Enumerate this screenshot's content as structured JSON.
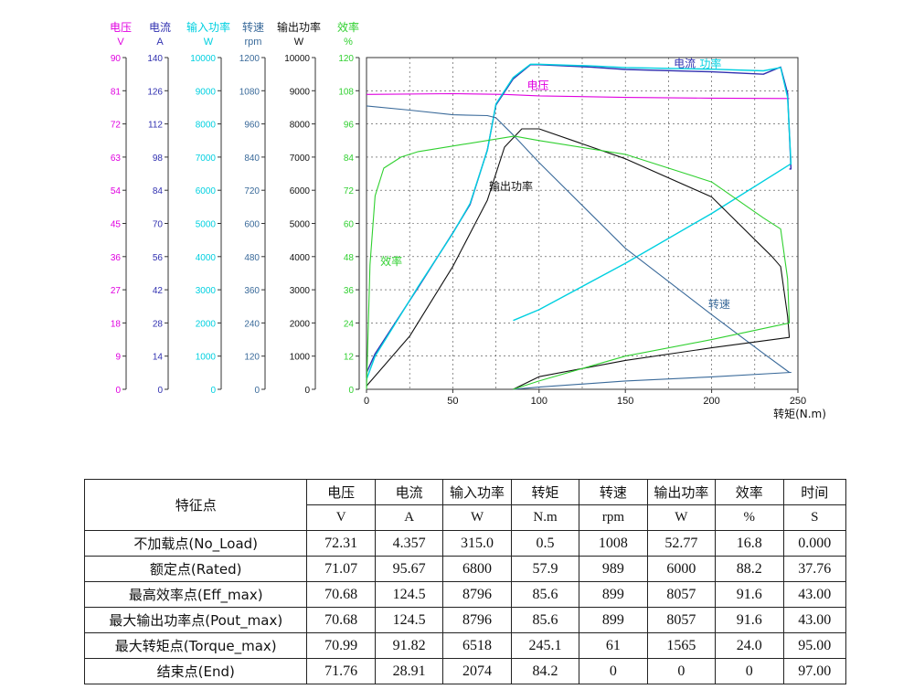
{
  "chart_data": {
    "type": "line",
    "xlabel": "转矩(N.m)",
    "xlim": [
      0,
      250
    ],
    "x_ticks": [
      "0",
      "50",
      "100",
      "150",
      "200",
      "250"
    ],
    "grid": true,
    "axes": [
      {
        "name": "电压",
        "unit": "V",
        "color": "#e000e0",
        "min": 0,
        "max": 90,
        "ticks": [
          "0",
          "9",
          "18",
          "27",
          "36",
          "45",
          "54",
          "63",
          "72",
          "81",
          "90"
        ]
      },
      {
        "name": "电流",
        "unit": "A",
        "color": "#3030b0",
        "min": 0,
        "max": 140,
        "ticks": [
          "0",
          "14",
          "28",
          "42",
          "56",
          "70",
          "84",
          "98",
          "112",
          "126",
          "140"
        ]
      },
      {
        "name": "输入功率",
        "unit": "W",
        "color": "#00d0e0",
        "min": 0,
        "max": 10000,
        "ticks": [
          "0",
          "1000",
          "2000",
          "3000",
          "4000",
          "5000",
          "6000",
          "7000",
          "8000",
          "9000",
          "10000"
        ]
      },
      {
        "name": "转速",
        "unit": "rpm",
        "color": "#3a6a9a",
        "min": 0,
        "max": 1200,
        "ticks": [
          "0",
          "120",
          "240",
          "360",
          "480",
          "600",
          "720",
          "840",
          "960",
          "1080",
          "1200"
        ]
      },
      {
        "name": "输出功率",
        "unit": "W",
        "color": "#111111",
        "min": 0,
        "max": 10000,
        "ticks": [
          "0",
          "1000",
          "2000",
          "3000",
          "4000",
          "5000",
          "6000",
          "7000",
          "8000",
          "9000",
          "10000"
        ]
      },
      {
        "name": "效率",
        "unit": "%",
        "color": "#30d030",
        "min": 0,
        "max": 120,
        "ticks": [
          "0",
          "12",
          "24",
          "36",
          "48",
          "60",
          "72",
          "84",
          "96",
          "108",
          "120"
        ]
      }
    ],
    "series": [
      {
        "name": "电压",
        "axis": 0,
        "color": "#e000e0",
        "x": [
          0,
          50,
          80,
          100,
          150,
          200,
          245
        ],
        "y": [
          80.0,
          80.2,
          80.0,
          79.6,
          79.2,
          79.0,
          78.9
        ]
      },
      {
        "name": "电流",
        "axis": 1,
        "color": "#3030b0",
        "x": [
          0,
          5,
          30,
          50,
          60,
          70,
          75,
          85,
          95,
          100,
          130,
          150,
          200,
          230,
          240,
          244,
          246,
          245
        ],
        "y": [
          7,
          15,
          43,
          66,
          78,
          101,
          120,
          131,
          137,
          137,
          136,
          135,
          134,
          133,
          136,
          125,
          93,
          93
        ]
      },
      {
        "name": "输入功率",
        "axis": 2,
        "color": "#00d0e0",
        "x": [
          0,
          5,
          30,
          50,
          60,
          70,
          75,
          85,
          95,
          100,
          130,
          150,
          200,
          230,
          240,
          244,
          246,
          200,
          150,
          100,
          85
        ],
        "y": [
          300,
          1000,
          3100,
          4700,
          5600,
          7200,
          8600,
          9400,
          9800,
          9800,
          9750,
          9700,
          9650,
          9600,
          9700,
          8800,
          6800,
          5300,
          3800,
          2400,
          2074
        ]
      },
      {
        "name": "转速",
        "axis": 3,
        "color": "#3a6a9a",
        "x": [
          0,
          25,
          50,
          70,
          75,
          85,
          100,
          150,
          200,
          230,
          245,
          246,
          200,
          150,
          100,
          85
        ],
        "y": [
          1025,
          1010,
          993,
          990,
          982,
          920,
          820,
          510,
          270,
          130,
          61,
          61,
          45,
          30,
          8,
          0
        ]
      },
      {
        "name": "输出功率",
        "axis": 4,
        "color": "#111111",
        "x": [
          0,
          25,
          50,
          70,
          80,
          90,
          100,
          150,
          200,
          235,
          240,
          244,
          245,
          200,
          150,
          100,
          85
        ],
        "y": [
          100,
          1600,
          3700,
          5700,
          7300,
          7850,
          7850,
          6950,
          5800,
          4000,
          3700,
          2200,
          1565,
          1250,
          870,
          380,
          0
        ]
      },
      {
        "name": "效率",
        "axis": 5,
        "color": "#30d030",
        "x": [
          0,
          2,
          5,
          10,
          20,
          30,
          50,
          80,
          85.6,
          100,
          150,
          200,
          230,
          240,
          244,
          245,
          200,
          150,
          100,
          85
        ],
        "y": [
          0,
          45,
          70,
          80,
          84,
          86,
          88,
          91,
          91.6,
          90,
          85,
          75,
          62,
          58,
          40,
          24,
          18,
          12,
          3,
          0
        ]
      }
    ],
    "annotations": [
      {
        "text": "电流",
        "x": 178,
        "axis": 1,
        "y": 136,
        "color": "#3030b0"
      },
      {
        "text": "功率",
        "x": 193,
        "axis": 2,
        "y": 9700,
        "color": "#00d0e0"
      },
      {
        "text": "电压",
        "x": 93,
        "axis": 0,
        "y": 81.5,
        "color": "#e000e0"
      },
      {
        "text": "输出功率",
        "x": 71,
        "axis": 4,
        "y": 6000,
        "color": "#111111"
      },
      {
        "text": "效率",
        "x": 8,
        "axis": 5,
        "y": 45,
        "color": "#30d030"
      },
      {
        "text": "转速",
        "x": 198,
        "axis": 3,
        "y": 295,
        "color": "#3a6a9a"
      }
    ]
  },
  "table": {
    "corner": "特征点",
    "headers": [
      "电压",
      "电流",
      "输入功率",
      "转矩",
      "转速",
      "输出功率",
      "效率",
      "时间"
    ],
    "units": [
      "V",
      "A",
      "W",
      "N.m",
      "rpm",
      "W",
      "%",
      "S"
    ],
    "rows": [
      {
        "name": "不加载点(No_Load)",
        "values": [
          "72.31",
          "4.357",
          "315.0",
          "0.5",
          "1008",
          "52.77",
          "16.8",
          "0.000"
        ]
      },
      {
        "name": "额定点(Rated)",
        "values": [
          "71.07",
          "95.67",
          "6800",
          "57.9",
          "989",
          "6000",
          "88.2",
          "37.76"
        ]
      },
      {
        "name": "最高效率点(Eff_max)",
        "values": [
          "70.68",
          "124.5",
          "8796",
          "85.6",
          "899",
          "8057",
          "91.6",
          "43.00"
        ]
      },
      {
        "name": "最大输出功率点(Pout_max)",
        "values": [
          "70.68",
          "124.5",
          "8796",
          "85.6",
          "899",
          "8057",
          "91.6",
          "43.00"
        ]
      },
      {
        "name": "最大转矩点(Torque_max)",
        "values": [
          "70.99",
          "91.82",
          "6518",
          "245.1",
          "61",
          "1565",
          "24.0",
          "95.00"
        ]
      },
      {
        "name": "结束点(End)",
        "values": [
          "71.76",
          "28.91",
          "2074",
          "84.2",
          "0",
          "0",
          "0",
          "97.00"
        ]
      }
    ]
  }
}
